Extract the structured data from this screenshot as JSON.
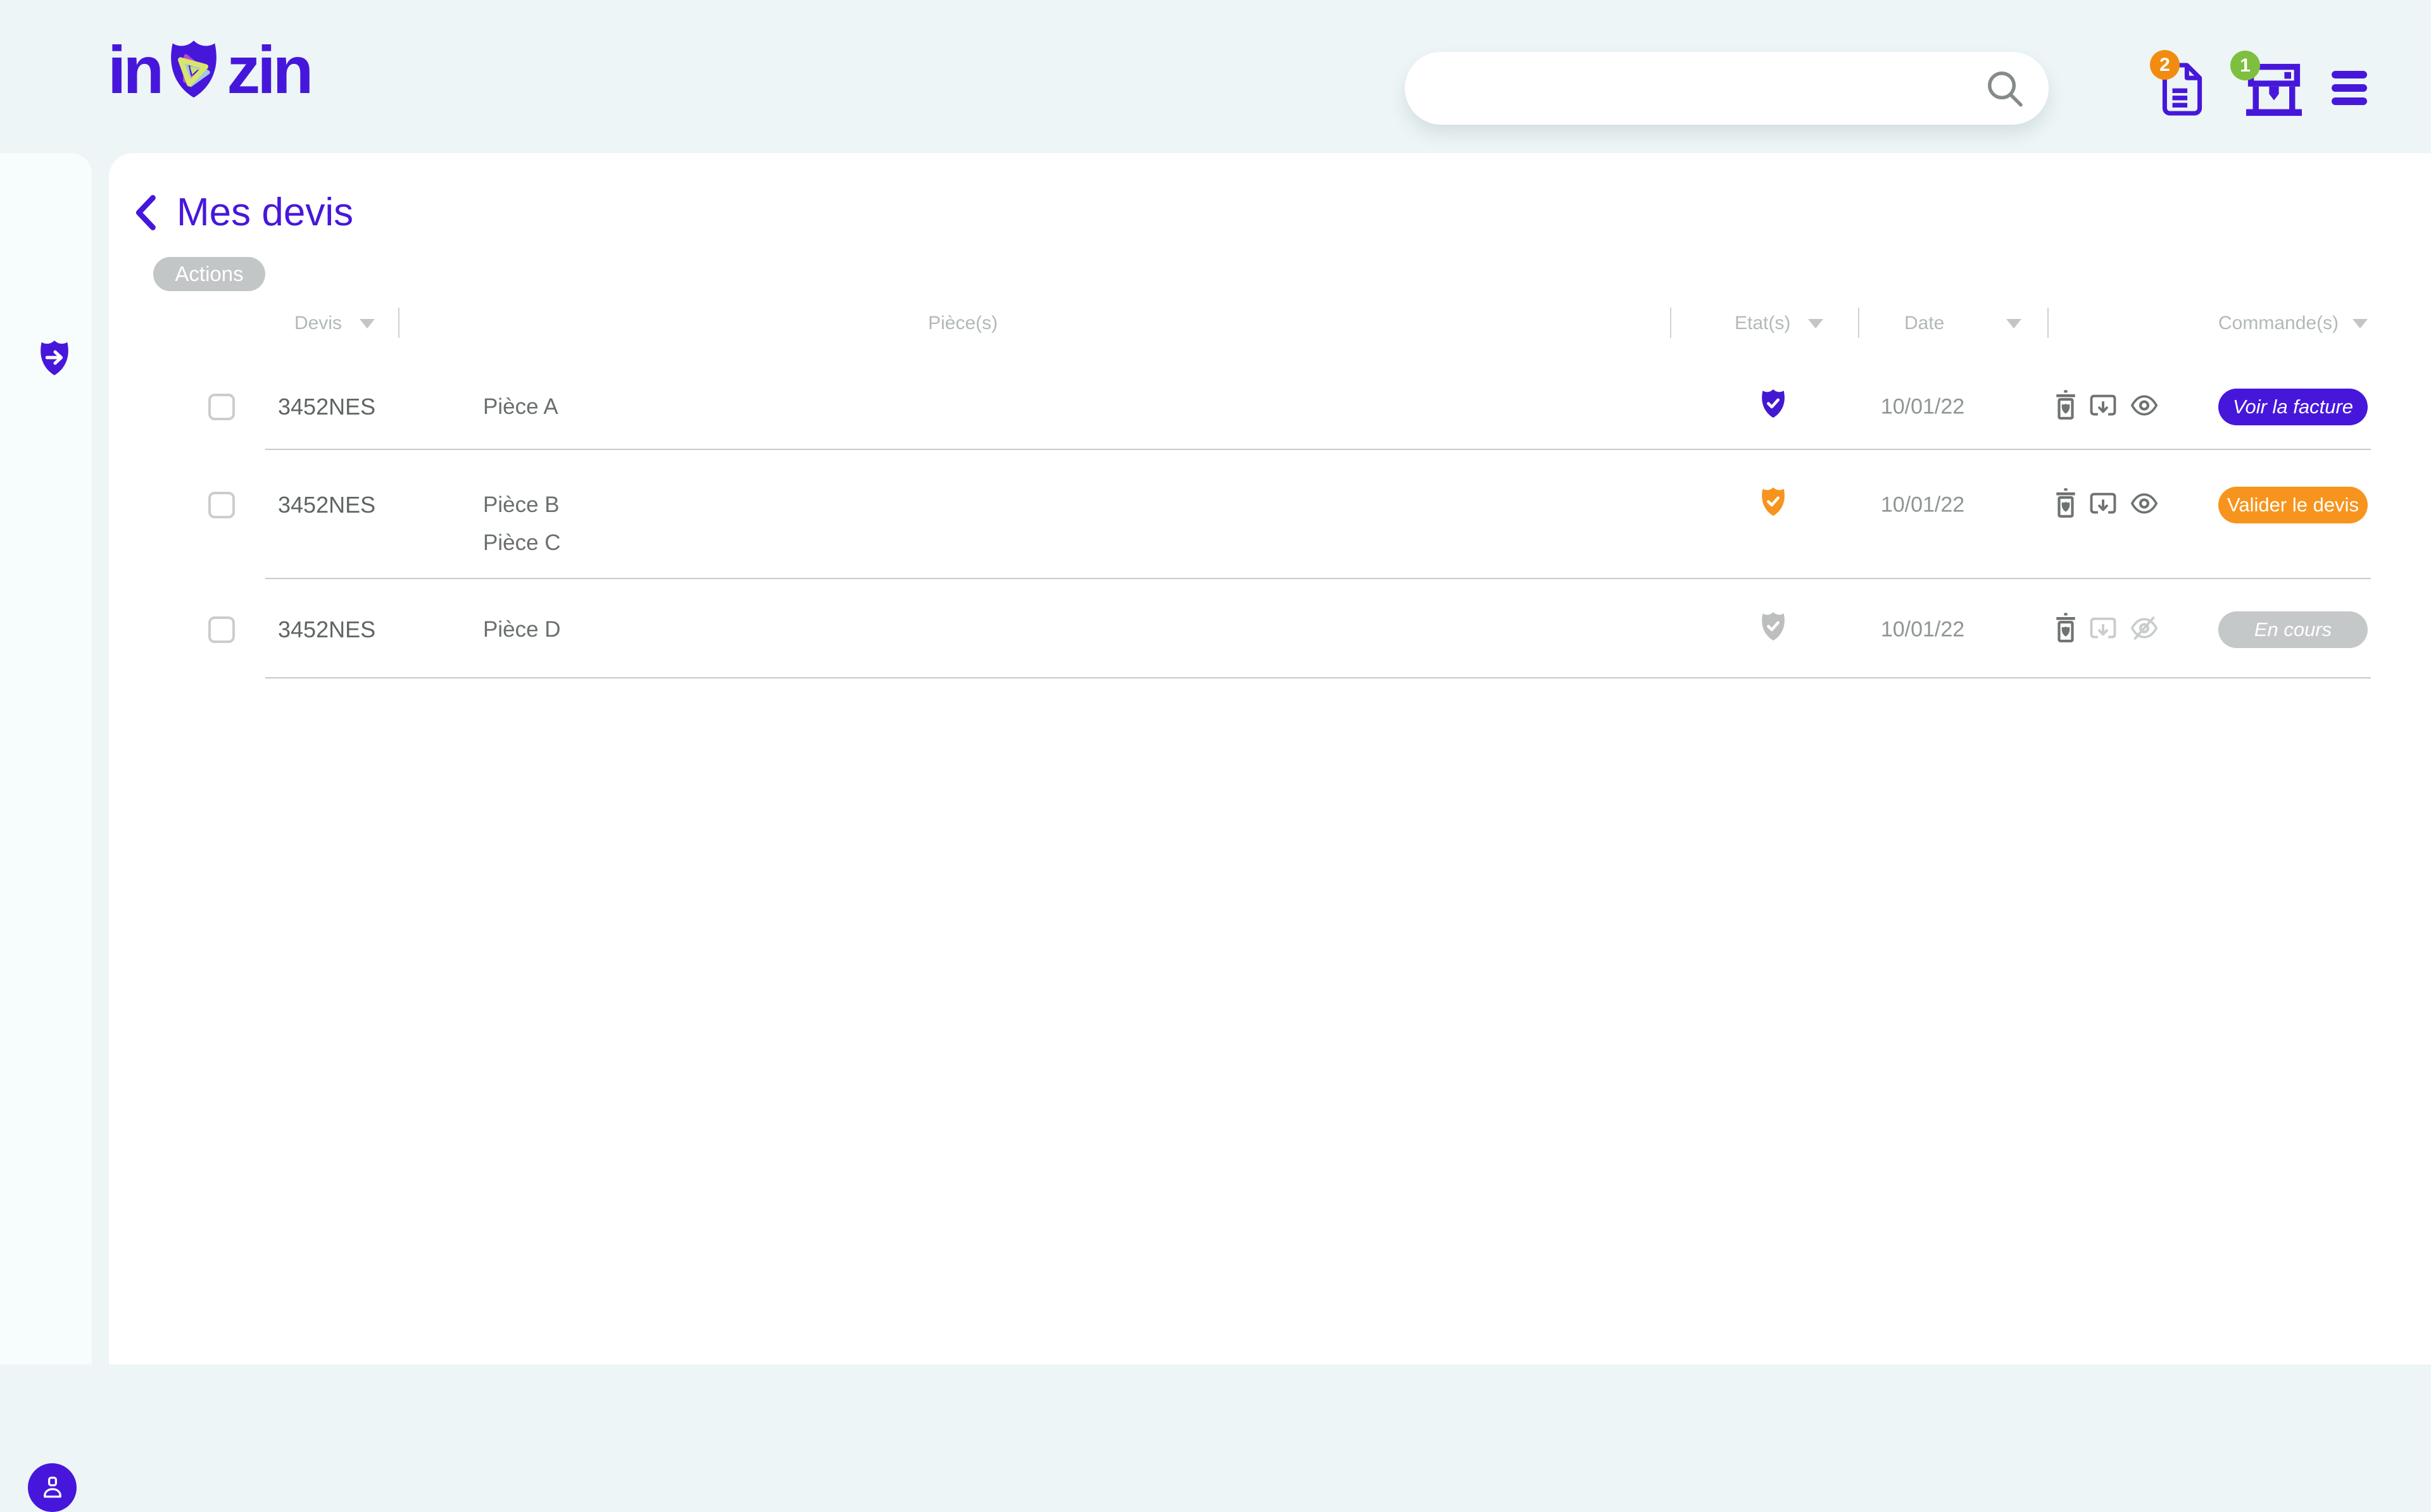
{
  "header": {
    "logo": {
      "left": "in",
      "right": "zin"
    },
    "search": {
      "value": "",
      "placeholder": ""
    },
    "badges": {
      "documents": "2",
      "printer": "1"
    },
    "icons": [
      "documents-icon",
      "printer-3d-icon",
      "menu-icon",
      "search-icon"
    ]
  },
  "sidebar": {
    "icons": [
      "shield-arrow-icon",
      "user-icon"
    ]
  },
  "page": {
    "title": "Mes devis",
    "actions_label": "Actions"
  },
  "table": {
    "columns": [
      {
        "label": "Devis",
        "sortable": true
      },
      {
        "label": "Pièce(s)",
        "sortable": false
      },
      {
        "label": "Etat(s)",
        "sortable": true
      },
      {
        "label": "Date",
        "sortable": true
      },
      {
        "label": "Commande(s)",
        "sortable": true
      }
    ],
    "rows": [
      {
        "devis": "3452NES",
        "pieces": [
          "Pièce A"
        ],
        "status": "validated",
        "date": "10/01/22",
        "checked": false,
        "actions": {
          "delete_enabled": true,
          "download_enabled": true,
          "view_enabled": true
        },
        "cta": {
          "label": "Voir la facture",
          "variant": "primary",
          "italic": true
        }
      },
      {
        "devis": "3452NES",
        "pieces": [
          "Pièce B",
          "Pièce C"
        ],
        "status": "pending",
        "date": "10/01/22",
        "checked": false,
        "actions": {
          "delete_enabled": true,
          "download_enabled": true,
          "view_enabled": true
        },
        "cta": {
          "label": "Valider le devis",
          "variant": "warning",
          "italic": false
        }
      },
      {
        "devis": "3452NES",
        "pieces": [
          "Pièce D"
        ],
        "status": "inactive",
        "date": "10/01/22",
        "checked": false,
        "actions": {
          "delete_enabled": true,
          "download_enabled": false,
          "view_enabled": false
        },
        "cta": {
          "label": "En cours",
          "variant": "disabled",
          "italic": true
        }
      }
    ]
  },
  "colors": {
    "accent": "#4617db",
    "orange": "#f7941d",
    "badge_orange": "#f28c11",
    "badge_green": "#7fbf3f",
    "status": {
      "validated": "#4318d1",
      "pending": "#f7941d",
      "inactive": "#bdbfbf"
    },
    "cta_variant": {
      "primary": "#4617db",
      "warning": "#f7941d",
      "disabled": "#c5c8c8"
    },
    "icon_gray": "#6e7272",
    "icon_disabled": "#c9cccc"
  }
}
